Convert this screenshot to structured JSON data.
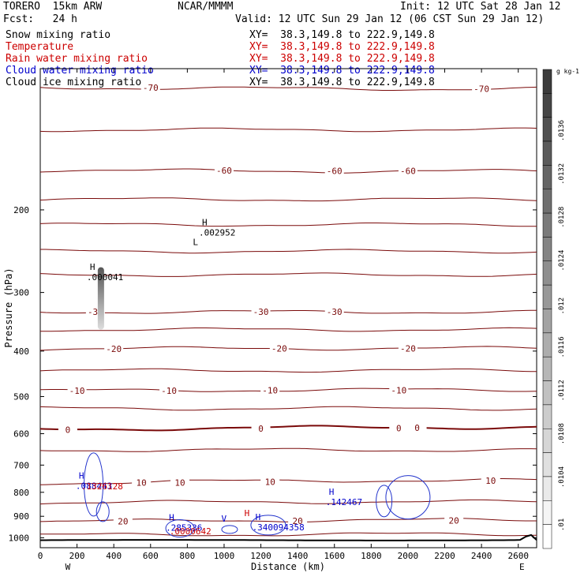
{
  "header": {
    "model": "TORERO  15km ARW",
    "center": "NCAR/MMMM",
    "init": "Init: 12 UTC Sat 28 Jan 12",
    "fcst": "Fcst:   24 h",
    "valid": "Valid: 12 UTC Sun 29 Jan 12 (06 CST Sun 29 Jan 12)"
  },
  "fields": [
    {
      "name": "Snow mixing ratio",
      "xy": "XY=  38.3,149.8 to 222.9,149.8",
      "color": "#000000"
    },
    {
      "name": "Temperature",
      "xy": "XY=  38.3,149.8 to 222.9,149.8",
      "color": "#cc0000"
    },
    {
      "name": "Rain water mixing ratio",
      "xy": "XY=  38.3,149.8 to 222.9,149.8",
      "color": "#cc0000"
    },
    {
      "name": "Cloud water mixing ratio",
      "xy": "XY=  38.3,149.8 to 222.9,149.8",
      "color": "#0000cc"
    },
    {
      "name": "Cloud ice mixing ratio",
      "xy": "XY=  38.3,149.8 to 222.9,149.8",
      "color": "#000000"
    }
  ],
  "chart_data": {
    "type": "contour-cross-section",
    "xlabel": "Distance (km)",
    "ylabel": "Pressure (hPa)",
    "xlim": [
      0,
      2700
    ],
    "ylim": [
      1050,
      100
    ],
    "y_scale": "log",
    "x_ticks": [
      0,
      200,
      400,
      600,
      800,
      1000,
      1200,
      1400,
      1600,
      1800,
      2000,
      2200,
      2400,
      2600
    ],
    "y_ticks": [
      200,
      300,
      400,
      500,
      600,
      700,
      800,
      900,
      1000
    ],
    "x_end_labels": {
      "left": "W",
      "right": "E"
    },
    "temperature_contours": [
      {
        "label": "-70",
        "p": 110,
        "drift": -15,
        "lbl_x": [
          600,
          2400
        ]
      },
      {
        "label": "",
        "p": 135,
        "drift": 0,
        "lbl_x": []
      },
      {
        "label": "-60",
        "p": 165,
        "drift": -10,
        "lbl_x": [
          1000,
          1600,
          2000
        ]
      },
      {
        "label": "",
        "p": 190,
        "drift": 0,
        "lbl_x": []
      },
      {
        "label": "",
        "p": 215,
        "drift": 0,
        "lbl_x": []
      },
      {
        "label": "",
        "p": 245,
        "drift": 0,
        "lbl_x": []
      },
      {
        "label": "",
        "p": 275,
        "drift": 0,
        "lbl_x": []
      },
      {
        "label": "-30",
        "p": 330,
        "drift": 0,
        "lbl_x": [
          300,
          1200,
          1600
        ]
      },
      {
        "label": "",
        "p": 360,
        "drift": 0,
        "lbl_x": []
      },
      {
        "label": "-20",
        "p": 395,
        "drift": 5,
        "lbl_x": [
          400,
          1300,
          2000
        ]
      },
      {
        "label": "",
        "p": 440,
        "drift": 0,
        "lbl_x": []
      },
      {
        "label": "-10",
        "p": 485,
        "drift": 10,
        "lbl_x": [
          200,
          700,
          1250,
          1950
        ]
      },
      {
        "label": "",
        "p": 530,
        "drift": 0,
        "lbl_x": []
      },
      {
        "label": "0",
        "p": 585,
        "drift": 25,
        "lbl_x": [
          150,
          1200,
          1950,
          2050
        ],
        "bold": true
      },
      {
        "label": "",
        "p": 650,
        "drift": 0,
        "lbl_x": []
      },
      {
        "label": "10",
        "p": 760,
        "drift": 30,
        "lbl_x": [
          550,
          760,
          1250,
          2450
        ]
      },
      {
        "label": "",
        "p": 840,
        "drift": 10,
        "lbl_x": []
      },
      {
        "label": "20",
        "p": 920,
        "drift": 15,
        "lbl_x": [
          450,
          1400,
          2250
        ]
      },
      {
        "label": "",
        "p": 985,
        "drift": 10,
        "lbl_x": []
      }
    ],
    "annotations": [
      {
        "marker": "H",
        "value": ".000041",
        "x": 270,
        "p": 280,
        "color": "#000000"
      },
      {
        "marker": "H",
        "value": ".002952",
        "x": 880,
        "p": 225,
        "color": "#000000"
      },
      {
        "marker": "L",
        "value": "",
        "x": 830,
        "p": 248,
        "color": "#000000"
      },
      {
        "marker": "H",
        "value": ".088443",
        "x": 210,
        "p": 780,
        "color": "#0000cc"
      },
      {
        "marker": "",
        "value": ".1326128",
        "x": 240,
        "p": 782,
        "color": "#cc0000"
      },
      {
        "marker": "H",
        "value": ".142467",
        "x": 1570,
        "p": 845,
        "color": "#0000cc"
      },
      {
        "marker": "H",
        "value": ".285336",
        "x": 700,
        "p": 958,
        "color": "#0000cc"
      },
      {
        "marker": "",
        "value": ".0000642",
        "x": 720,
        "p": 975,
        "color": "#cc0000"
      },
      {
        "marker": "H",
        "value": ".340094358",
        "x": 1170,
        "p": 957,
        "color": "#0000cc"
      },
      {
        "marker": "H",
        "value": "",
        "x": 1110,
        "p": 938,
        "color": "#cc0000"
      },
      {
        "marker": "V",
        "value": "",
        "x": 985,
        "p": 965,
        "color": "#0000cc"
      }
    ],
    "colorbar": {
      "unit": "g kg-1",
      "ticks": [
        ".0136",
        ".0132",
        ".0128",
        ".0124",
        ".012",
        ".0116",
        ".0112",
        ".0108",
        ".0104",
        ".01"
      ]
    }
  }
}
